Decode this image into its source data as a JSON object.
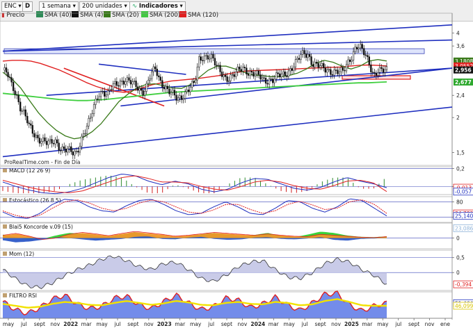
{
  "toolbar": {
    "symbol": "ENC",
    "symbol_letter": "D",
    "price_label": "Precio",
    "timeframe": "1 semana",
    "units": "200 unidades",
    "indicators_label": "Indicadores",
    "legend": [
      {
        "label": "SMA (40)",
        "color": "#2e8b57"
      },
      {
        "label": "SMA (4)",
        "color": "#111111"
      },
      {
        "label": "SMA (20)",
        "color": "#3a7a1a"
      },
      {
        "label": "SMA (200)",
        "color": "#43c843"
      },
      {
        "label": "SMA (120)",
        "color": "#e02020"
      }
    ]
  },
  "source_label": "ProRealTime.com - Fin de Día",
  "colors": {
    "trend": "#1f2fbf",
    "red": "#e02020",
    "green": "#3fcf3f",
    "olive": "#3a7a1a",
    "candle": "#111111",
    "band": "#aab4e8"
  },
  "chart_data": [
    {
      "type": "candlestick",
      "name": "main",
      "ylim": [
        1.35,
        4.35
      ],
      "log_scale": true,
      "y_ticks": [
        "4",
        "3,6",
        "2,4",
        "2",
        "1,5"
      ],
      "y_tick_values": [
        4,
        3.6,
        2.4,
        2,
        1.5
      ],
      "price_tags": [
        {
          "label": "3,1808",
          "value": 3.1808,
          "color": "#3a7a1a",
          "bold": false
        },
        {
          "label": "3,0552",
          "value": 3.0552,
          "color": "#e02020",
          "bold": false
        },
        {
          "label": "2,956",
          "value": 2.956,
          "color": "#111111",
          "bold": true
        },
        {
          "label": "2,677",
          "value": 2.677,
          "color": "#2ea82e",
          "bold": true
        }
      ],
      "close": [
        2.95,
        2.85,
        2.6,
        2.45,
        2.2,
        2.05,
        1.85,
        1.75,
        1.7,
        1.68,
        1.62,
        1.6,
        1.65,
        1.58,
        1.55,
        1.52,
        1.48,
        1.5,
        1.7,
        1.82,
        1.95,
        2.2,
        2.45,
        2.5,
        2.4,
        2.55,
        2.62,
        2.7,
        2.75,
        2.68,
        2.6,
        2.55,
        2.48,
        2.62,
        2.85,
        2.95,
        2.7,
        2.62,
        2.5,
        2.4,
        2.3,
        2.38,
        2.5,
        2.58,
        2.62,
        3.2,
        3.32,
        3.35,
        3.25,
        3.0,
        2.9,
        2.8,
        2.78,
        2.82,
        2.92,
        3.02,
        2.95,
        2.88,
        2.82,
        2.78,
        2.72,
        2.75,
        2.72,
        2.8,
        2.82,
        2.9,
        3.0,
        3.1,
        3.25,
        3.4,
        3.38,
        3.12,
        3.05,
        3.0,
        2.98,
        2.95,
        2.92,
        2.88,
        2.9,
        3.15,
        3.35,
        3.58,
        3.5,
        3.35,
        3.15,
        2.85,
        2.92,
        2.9,
        2.956
      ],
      "sma200": [
        2.44,
        2.42,
        2.4,
        2.38,
        2.36,
        2.34,
        2.32,
        2.31,
        2.3,
        2.3,
        2.31,
        2.32,
        2.34,
        2.36,
        2.38,
        2.4,
        2.42,
        2.44,
        2.46,
        2.47,
        2.48,
        2.49,
        2.5,
        2.51,
        2.52,
        2.53,
        2.54,
        2.55,
        2.56,
        2.57,
        2.58,
        2.59,
        2.6,
        2.61,
        2.62,
        2.63,
        2.64,
        2.65,
        2.66,
        2.66,
        2.67,
        2.68
      ],
      "sma120": [
        3.18,
        3.2,
        3.2,
        3.18,
        3.12,
        3.04,
        2.96,
        2.86,
        2.76,
        2.66,
        2.58,
        2.52,
        2.48,
        2.46,
        2.5,
        2.56,
        2.62,
        2.66,
        2.7,
        2.72,
        2.74,
        2.76,
        2.79,
        2.82,
        2.86,
        2.9,
        2.93,
        2.94,
        2.95,
        2.96,
        2.97,
        2.98,
        2.99,
        3.0,
        3.01,
        3.02,
        3.03,
        3.05,
        3.07,
        3.08,
        3.07,
        3.0552
      ],
      "sma40": [
        2.9,
        2.75,
        2.55,
        2.3,
        2.08,
        1.92,
        1.8,
        1.72,
        1.68,
        1.7,
        1.78,
        1.9,
        2.08,
        2.28,
        2.42,
        2.55,
        2.62,
        2.64,
        2.6,
        2.55,
        2.54,
        2.62,
        2.78,
        2.95,
        3.05,
        3.05,
        2.98,
        2.9,
        2.84,
        2.82,
        2.8,
        2.8,
        2.82,
        2.88,
        2.98,
        3.12,
        3.2,
        3.15,
        3.05,
        2.98,
        3.05,
        3.18,
        3.22,
        3.1808
      ],
      "trendlines": [
        {
          "from": [
            0,
            3.45
          ],
          "to": [
            88,
            4.28
          ],
          "color": "#1f2fbf"
        },
        {
          "from": [
            0,
            3.45
          ],
          "to": [
            88,
            3.78
          ],
          "color": "#1f2fbf"
        },
        {
          "from": [
            0,
            1.45
          ],
          "to": [
            88,
            2.18
          ],
          "color": "#1f2fbf"
        },
        {
          "from": [
            10,
            2.4
          ],
          "to": [
            88,
            3.0
          ],
          "color": "#1f2fbf"
        },
        {
          "from": [
            22,
            3.1
          ],
          "to": [
            42,
            2.85
          ],
          "color": "#1f2fbf"
        },
        {
          "from": [
            27,
            2.2
          ],
          "to": [
            88,
            3.0
          ],
          "color": "#1f2fbf"
        },
        {
          "from": [
            14,
            3.0
          ],
          "to": [
            37,
            2.2
          ],
          "color": "#e02020"
        }
      ]
    },
    {
      "type": "bar-line",
      "name": "MACD (12 26 9)",
      "ylim": [
        -0.09,
        0.22
      ],
      "y_ticks": [
        "0,2",
        "0"
      ],
      "y_tick_values": [
        0.2,
        0
      ],
      "price_tags": [
        {
          "label": "-0,013",
          "value": -0.013,
          "color": "#e02020"
        },
        {
          "label": "-0,057",
          "value": -0.057,
          "color": "#1f2fbf"
        }
      ],
      "macd": [
        0.05,
        0.0,
        -0.04,
        -0.07,
        -0.08,
        -0.06,
        -0.02,
        0.04,
        0.1,
        0.14,
        0.12,
        0.06,
        0.02,
        0.06,
        0.03,
        -0.03,
        -0.06,
        -0.03,
        0.04,
        0.09,
        0.08,
        0.03,
        -0.02,
        -0.04,
        -0.01,
        0.05,
        0.1,
        0.06,
        0.03,
        -0.013
      ],
      "signal": [
        0.07,
        0.03,
        -0.01,
        -0.04,
        -0.06,
        -0.07,
        -0.05,
        0.0,
        0.05,
        0.1,
        0.12,
        0.09,
        0.05,
        0.05,
        0.04,
        0.0,
        -0.03,
        -0.04,
        0.0,
        0.05,
        0.07,
        0.05,
        0.01,
        -0.02,
        -0.03,
        0.01,
        0.06,
        0.07,
        0.04,
        -0.057
      ]
    },
    {
      "type": "line",
      "name": "Estocástico (26 8 5)",
      "ylim": [
        0,
        100
      ],
      "y_ticks": [
        "80",
        "20"
      ],
      "y_tick_values": [
        80,
        20
      ],
      "price_tags": [
        {
          "label": "34,783",
          "value": 34.783,
          "color": "#e02020"
        },
        {
          "label": "25,140",
          "value": 25.14,
          "color": "#1f2fbf"
        }
      ],
      "k": [
        40,
        20,
        15,
        35,
        70,
        90,
        85,
        60,
        45,
        40,
        65,
        85,
        90,
        70,
        45,
        30,
        35,
        60,
        80,
        60,
        35,
        30,
        55,
        85,
        80,
        55,
        40,
        60,
        92,
        85,
        55,
        25.14
      ],
      "d": [
        45,
        28,
        18,
        28,
        55,
        80,
        88,
        75,
        55,
        45,
        55,
        75,
        87,
        80,
        60,
        40,
        35,
        48,
        70,
        70,
        50,
        35,
        45,
        70,
        82,
        68,
        50,
        55,
        80,
        88,
        70,
        34.783
      ]
    },
    {
      "type": "area",
      "name": "Blai5 Koncorde v.09 (15)",
      "ylim": [
        -25,
        35
      ],
      "y_ticks": [
        "0"
      ],
      "y_tick_values": [
        0
      ],
      "price_tags": [
        {
          "label": "23,086",
          "value": 23.086,
          "color": "#8fb3d9"
        }
      ],
      "green": [
        8,
        2,
        -5,
        -2,
        6,
        12,
        10,
        5,
        3,
        8,
        14,
        6,
        2,
        -3,
        4,
        9,
        12,
        8,
        4,
        7,
        12,
        5,
        2,
        8,
        15,
        12,
        6,
        3,
        2,
        4
      ],
      "orange": [
        6,
        10,
        4,
        -3,
        0,
        8,
        12,
        9,
        5,
        10,
        14,
        11,
        8,
        4,
        6,
        9,
        12,
        10,
        8,
        6,
        9,
        6,
        4,
        3,
        8,
        6,
        4,
        2,
        1,
        3
      ],
      "blue": [
        -5,
        -10,
        -8,
        -4,
        2,
        0,
        -3,
        -6,
        -4,
        -2,
        3,
        4,
        -2,
        -3,
        1,
        3,
        -2,
        -4,
        -3,
        1,
        2,
        -2,
        -3,
        -1,
        2,
        -4,
        -6,
        -2,
        -1,
        0
      ]
    },
    {
      "type": "area",
      "name": "Mom (12)",
      "ylim": [
        -0.6,
        0.75
      ],
      "y_ticks": [
        "0,5",
        "0"
      ],
      "y_tick_values": [
        0.5,
        0
      ],
      "price_tags": [
        {
          "label": "-0,394",
          "value": -0.394,
          "color": "#e02020"
        }
      ],
      "values": [
        0.1,
        -0.2,
        -0.45,
        -0.5,
        -0.35,
        -0.1,
        0.1,
        0.25,
        0.45,
        0.55,
        0.4,
        0.2,
        0.1,
        0.3,
        0.35,
        0.1,
        -0.2,
        -0.3,
        -0.1,
        0.2,
        0.35,
        0.4,
        0.1,
        -0.15,
        -0.2,
        0.0,
        0.3,
        0.45,
        0.35,
        0.1,
        -0.1,
        -0.394
      ]
    },
    {
      "type": "line",
      "name": "FILTRO RSI",
      "ylim": [
        20,
        75
      ],
      "y_ticks": [],
      "y_tick_values": [],
      "price_tags": [
        {
          "label": "51,464",
          "value": 51.464,
          "color": "#1f2fbf"
        },
        {
          "label": "46,099",
          "value": 46.099,
          "color": "#d8c400"
        }
      ],
      "rsi": [
        55,
        38,
        30,
        42,
        60,
        68,
        50,
        40,
        45,
        62,
        66,
        48,
        40,
        55,
        68,
        52,
        38,
        44,
        62,
        58,
        42,
        50,
        64,
        48,
        36,
        52,
        70,
        72,
        48,
        35,
        46,
        51.464
      ],
      "filter": [
        50,
        46,
        42,
        44,
        50,
        54,
        52,
        48,
        47,
        52,
        56,
        52,
        48,
        51,
        56,
        53,
        48,
        47,
        52,
        54,
        50,
        49,
        54,
        52,
        47,
        49,
        56,
        60,
        54,
        47,
        46,
        46.099
      ]
    }
  ],
  "x_axis": {
    "labels": [
      "may",
      "jul",
      "sept",
      "nov",
      "2022",
      "mar",
      "may",
      "jul",
      "sept",
      "nov",
      "2023",
      "mar",
      "may",
      "jul",
      "sept",
      "nov",
      "2024",
      "mar",
      "may",
      "jul",
      "sept",
      "nov",
      "2025",
      "mar",
      "may",
      "jul",
      "sept",
      "nov",
      "ene"
    ],
    "bold": [
      "2022",
      "2023",
      "2024",
      "2025"
    ]
  }
}
